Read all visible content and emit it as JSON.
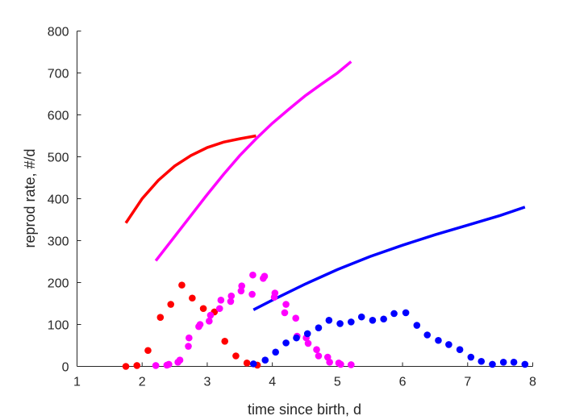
{
  "chart_data": {
    "type": "scatter",
    "title": "",
    "xlabel": "time since birth, d",
    "ylabel": "reprod rate, #/d",
    "xlim": [
      1,
      8
    ],
    "ylim": [
      0,
      800
    ],
    "xticks": [
      1,
      2,
      3,
      4,
      5,
      6,
      7,
      8
    ],
    "yticks": [
      0,
      100,
      200,
      300,
      400,
      500,
      600,
      700,
      800
    ],
    "grid": false,
    "legend": "none",
    "series": [
      {
        "kind": "points",
        "color": "#ff0000",
        "x": [
          1.75,
          1.92,
          2.09,
          2.28,
          2.44,
          2.61,
          2.77,
          2.94,
          3.11,
          3.27,
          3.44,
          3.61,
          3.77
        ],
        "y": [
          0,
          2,
          38,
          117,
          148,
          194,
          163,
          138,
          130,
          60,
          25,
          8,
          3
        ]
      },
      {
        "kind": "points",
        "color": "#ff00ff",
        "x": [
          2.21,
          2.38,
          2.41,
          2.55,
          2.58,
          2.71,
          2.72,
          2.87,
          2.89,
          3.03,
          3.05,
          3.19,
          3.21,
          3.36,
          3.37,
          3.52,
          3.53,
          3.69,
          3.7,
          3.86,
          3.88,
          4.03,
          4.04,
          4.19,
          4.21,
          4.36,
          4.38,
          4.52,
          4.55,
          4.68,
          4.71,
          4.85,
          4.88,
          5.02,
          5.05,
          5.21
        ],
        "y": [
          2,
          3,
          5,
          10,
          15,
          48,
          68,
          95,
          100,
          108,
          122,
          138,
          158,
          155,
          168,
          180,
          192,
          172,
          218,
          210,
          215,
          165,
          175,
          128,
          148,
          115,
          72,
          68,
          55,
          40,
          25,
          22,
          10,
          8,
          5,
          4
        ]
      },
      {
        "kind": "points",
        "color": "#0000ff",
        "x": [
          3.71,
          3.89,
          4.05,
          4.21,
          4.37,
          4.54,
          4.71,
          4.87,
          5.04,
          5.21,
          5.37,
          5.54,
          5.71,
          5.87,
          6.05,
          6.22,
          6.38,
          6.55,
          6.71,
          6.88,
          7.05,
          7.21,
          7.38,
          7.55,
          7.71,
          7.88
        ],
        "y": [
          6,
          15,
          34,
          56,
          68,
          78,
          92,
          110,
          102,
          106,
          118,
          110,
          113,
          126,
          128,
          98,
          75,
          62,
          52,
          40,
          22,
          12,
          5,
          10,
          10,
          5
        ]
      },
      {
        "kind": "line",
        "color": "#ff0000",
        "x": [
          1.75,
          2.0,
          2.25,
          2.5,
          2.75,
          3.0,
          3.25,
          3.5,
          3.75
        ],
        "y": [
          342,
          400,
          444,
          478,
          503,
          522,
          535,
          543,
          550
        ]
      },
      {
        "kind": "line",
        "color": "#ff00ff",
        "x": [
          2.21,
          2.5,
          2.75,
          3.0,
          3.25,
          3.5,
          3.75,
          4.0,
          4.25,
          4.5,
          4.75,
          5.0,
          5.21
        ],
        "y": [
          252,
          310,
          360,
          410,
          458,
          503,
          543,
          580,
          613,
          645,
          673,
          700,
          727
        ]
      },
      {
        "kind": "line",
        "color": "#0000ff",
        "x": [
          3.71,
          4.0,
          4.5,
          5.0,
          5.5,
          6.0,
          6.5,
          7.0,
          7.5,
          7.88
        ],
        "y": [
          135,
          158,
          196,
          231,
          262,
          289,
          314,
          337,
          360,
          380
        ]
      }
    ]
  }
}
